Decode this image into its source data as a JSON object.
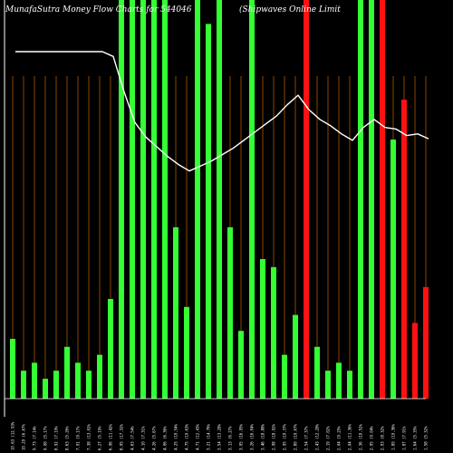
{
  "header": {
    "left_title": "MunafaSutra  Money Flow  Charts for 544046",
    "right_title": "(Shipwaves Online   Limit"
  },
  "colors": {
    "background": "#000000",
    "grid": "#8B4500",
    "axis": "#ffffff",
    "line": "#ffffff",
    "up": "#33ff33",
    "down": "#ff1111"
  },
  "chart_data": {
    "type": "bar",
    "title": "MunafaSutra  Money Flow  Charts for 544046",
    "subtitle": "(Shipwaves Online   Limit",
    "xlabel": "",
    "ylabel": "",
    "grid": true,
    "ylim": [
      0,
      100
    ],
    "categories": [
      "10.63 (12.93%",
      "10.29 (6.67%",
      "9.73 (7.14%",
      "9.08 (5.17%",
      "8.92 (7.19%",
      "8.63 (5.26%",
      "7.91 (9.17%",
      "7.38 (13.02%",
      "6.27 (5.19%",
      "6.96 (11.42%",
      "8.05 (17.32%",
      "4.63 (7.54%",
      "4.10 (7.31%",
      "4.26 (5.67%",
      "4.06 (6.36%",
      "4.25 (10.54%",
      "4.75 (10.63%",
      "4.71 (12.43%",
      "3.21 (14.76%",
      "3.54 (13.28%",
      "3.13 (6.27%",
      "3.05 (16.95%",
      "3.26 (16.04%",
      "3.46 (18.88%",
      "2.98 (18.92%",
      "2.95 (10.37%",
      "2.80 (10.67%",
      "2.54 (7.37%",
      "2.43 (12.28%",
      "2.19 (7.02%",
      "2.04 (9.25%",
      "2.04 (11.36%",
      "2.36 (10.52%",
      "2.05 (9.04%",
      "2.03 (8.32%",
      "1.89 (10.36%",
      "1.87 (7.91%",
      "1.64 (5.35%",
      "1.58 (5.32%"
    ],
    "series": [
      {
        "values": [
          15,
          7,
          9,
          5,
          7,
          13,
          9,
          7,
          11,
          25,
          100,
          100,
          100,
          100,
          100,
          43,
          23,
          100,
          94,
          100,
          43,
          17,
          100,
          35,
          33,
          11,
          21,
          100,
          13,
          7,
          9,
          7,
          100,
          100,
          100,
          65,
          75,
          19,
          28
        ],
        "flow": [
          "up",
          "up",
          "up",
          "up",
          "up",
          "up",
          "up",
          "up",
          "up",
          "up",
          "up",
          "up",
          "up",
          "up",
          "up",
          "up",
          "up",
          "up",
          "up",
          "up",
          "up",
          "up",
          "up",
          "up",
          "up",
          "up",
          "up",
          "down",
          "up",
          "up",
          "up",
          "up",
          "up",
          "up",
          "down",
          "up",
          "down",
          "down",
          "down"
        ]
      },
      {
        "type": "line",
        "values": [
          100,
          100,
          100,
          100,
          100,
          100,
          100,
          100,
          100,
          97,
          75,
          56,
          47,
          41,
          35,
          30,
          26,
          29,
          32,
          36,
          40,
          45,
          50,
          55,
          60,
          67,
          73,
          64,
          58,
          54,
          49,
          45,
          53,
          58,
          53,
          52,
          48,
          49,
          46
        ]
      }
    ]
  }
}
